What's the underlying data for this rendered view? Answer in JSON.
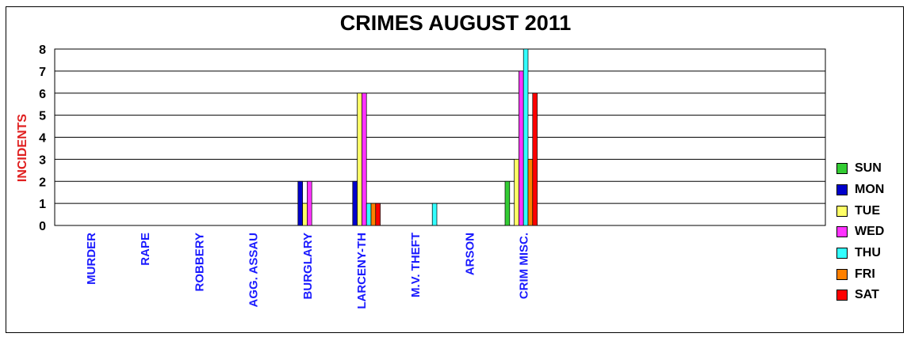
{
  "chart_data": {
    "type": "bar",
    "title": "CRIMES AUGUST 2011",
    "ylabel": "INCIDENTS",
    "ylim": [
      0,
      8
    ],
    "yticks": [
      "0",
      "1",
      "2",
      "3",
      "4",
      "5",
      "6",
      "7",
      "8"
    ],
    "grid": true,
    "legend_position": "right",
    "categories": [
      "MURDER",
      "RAPE",
      "ROBBERY",
      "AGG. ASSAU",
      "BURGLARY",
      "LARCENY-TH",
      "M.V. THEFT",
      "ARSON",
      "CRIM MISC."
    ],
    "series": [
      {
        "name": "SUN",
        "color": "#33cc33",
        "values": [
          0,
          0,
          0,
          0,
          0,
          0,
          0,
          0,
          2
        ]
      },
      {
        "name": "MON",
        "color": "#0000cc",
        "values": [
          0,
          0,
          0,
          0,
          2,
          2,
          0,
          0,
          0
        ]
      },
      {
        "name": "TUE",
        "color": "#ffff66",
        "values": [
          0,
          0,
          0,
          0,
          1,
          6,
          0,
          0,
          3
        ]
      },
      {
        "name": "WED",
        "color": "#ff33ff",
        "values": [
          0,
          0,
          0,
          0,
          2,
          6,
          0,
          0,
          7
        ]
      },
      {
        "name": "THU",
        "color": "#33ffff",
        "values": [
          0,
          0,
          0,
          0,
          0,
          1,
          1,
          0,
          8
        ]
      },
      {
        "name": "FRI",
        "color": "#ff8000",
        "values": [
          0,
          0,
          0,
          0,
          0,
          1,
          0,
          0,
          3
        ]
      },
      {
        "name": "SAT",
        "color": "#ff0000",
        "values": [
          0,
          0,
          0,
          0,
          0,
          1,
          0,
          0,
          6
        ]
      }
    ]
  }
}
